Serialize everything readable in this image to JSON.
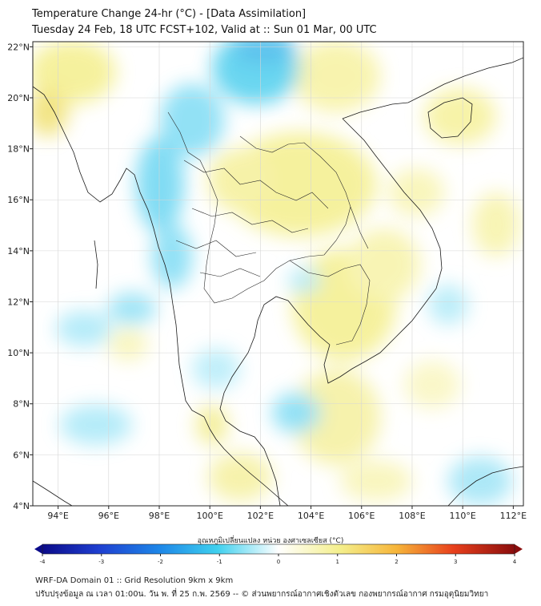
{
  "title": {
    "line1": "Temperature Change 24-hr (°C) - [Data Assimilation]",
    "line2": "Tuesday 24 Feb, 18 UTC FCST+102, Valid at :: Sun 01 Mar, 00 UTC"
  },
  "axes": {
    "lat_labels": [
      "22°N",
      "20°N",
      "18°N",
      "16°N",
      "14°N",
      "12°N",
      "10°N",
      "8°N",
      "6°N",
      "4°N"
    ],
    "lat_values": [
      22,
      20,
      18,
      16,
      14,
      12,
      10,
      8,
      6,
      4
    ],
    "lon_labels": [
      "94°E",
      "96°E",
      "98°E",
      "100°E",
      "102°E",
      "104°E",
      "106°E",
      "108°E",
      "110°E",
      "112°E"
    ],
    "lon_values": [
      94,
      96,
      98,
      100,
      102,
      104,
      106,
      108,
      110,
      112
    ],
    "lon_range": [
      93,
      112.4
    ],
    "lat_range": [
      4,
      22.2
    ]
  },
  "colorbar": {
    "label": "อุณหภูมิเปลี่ยนแปลง หน่วย องศาเซลเซียส (°C)",
    "ticks": [
      "-4",
      "-3",
      "-2",
      "-1",
      "0",
      "1",
      "2",
      "3",
      "4"
    ],
    "tick_values": [
      -4,
      -3,
      -2,
      -1,
      0,
      1,
      2,
      3,
      4
    ],
    "min": -4,
    "max": 4
  },
  "footer": {
    "line1": "WRF-DA Domain 01 :: Grid Resolution 9km x 9km",
    "line2": "ปรับปรุงข้อมูล ณ เวลา 01:00น. วัน พ. ที่ 25 ก.พ. 2569 -- © ส่วนพยากรณ์อากาศเชิงตัวเลข กองพยากรณ์อากาศ กรมอุตุนิยมวิทยา"
  },
  "colors": {
    "warm_field": "#f4ef8c",
    "cool_field": "#3fd0ee",
    "outline": "#1a1a1a",
    "grid": "#d6d6d6"
  }
}
